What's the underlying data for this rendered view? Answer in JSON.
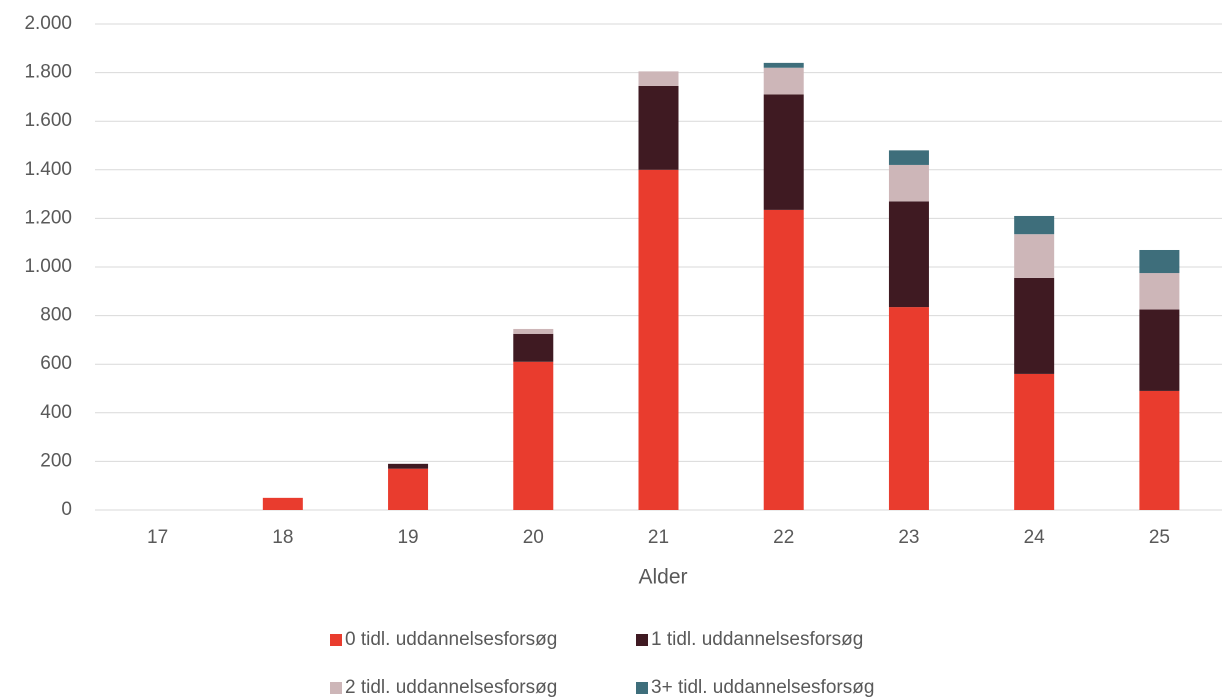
{
  "chart_data": {
    "type": "stacked_bar",
    "x_label": "Alder",
    "categories": [
      "17",
      "18",
      "19",
      "20",
      "21",
      "22",
      "23",
      "24",
      "25"
    ],
    "series": [
      {
        "name": "0 tidl. uddannelsesforsøg",
        "color": "#e93c2e",
        "values": [
          0,
          50,
          170,
          610,
          1400,
          1235,
          835,
          560,
          490
        ]
      },
      {
        "name": "1 tidl. uddannelsesforsøg",
        "color": "#3f1a22",
        "values": [
          0,
          0,
          20,
          115,
          345,
          475,
          435,
          395,
          335
        ]
      },
      {
        "name": "2 tidl. uddannelsesforsøg",
        "color": "#cdb6b8",
        "values": [
          0,
          0,
          0,
          20,
          60,
          110,
          150,
          180,
          150
        ]
      },
      {
        "name": "3+ tidl. uddannelsesforsøg",
        "color": "#3e6e7b",
        "values": [
          0,
          0,
          0,
          0,
          0,
          20,
          60,
          75,
          95
        ]
      }
    ],
    "ylim": [
      0,
      2000
    ],
    "yticks": [
      0,
      200,
      400,
      600,
      800,
      {
        "value": 1000,
        "label": "1.000"
      },
      {
        "value": 1200,
        "label": "1.200"
      },
      {
        "value": 1400,
        "label": "1.400"
      },
      {
        "value": 1600,
        "label": "1.600"
      },
      {
        "value": 1800,
        "label": "1.800"
      },
      {
        "value": 2000,
        "label": "2.000"
      }
    ],
    "grid": true
  }
}
